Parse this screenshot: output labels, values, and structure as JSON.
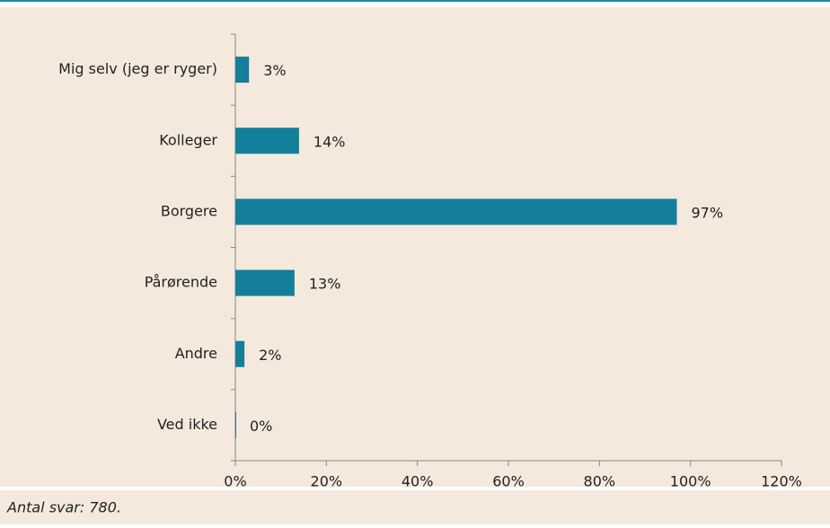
{
  "chart_data": {
    "type": "bar",
    "orientation": "horizontal",
    "categories": [
      "Mig selv (jeg er ryger)",
      "Kolleger",
      "Borgere",
      "Pårørende",
      "Andre",
      "Ved ikke"
    ],
    "values": [
      3,
      14,
      97,
      13,
      2,
      0
    ],
    "value_labels": [
      "3%",
      "14%",
      "97%",
      "13%",
      "2%",
      "0%"
    ],
    "color": "#137f9b",
    "xlim": [
      0,
      120
    ],
    "xticks": [
      {
        "value": 0,
        "label": "0%"
      },
      {
        "value": 20,
        "label": "20%"
      },
      {
        "value": 40,
        "label": "40%"
      },
      {
        "value": 60,
        "label": "60%"
      },
      {
        "value": 80,
        "label": "80%"
      },
      {
        "value": 100,
        "label": "100%"
      },
      {
        "value": 120,
        "label": "120%"
      }
    ],
    "grid": false,
    "note": "Antal svar: 780."
  }
}
